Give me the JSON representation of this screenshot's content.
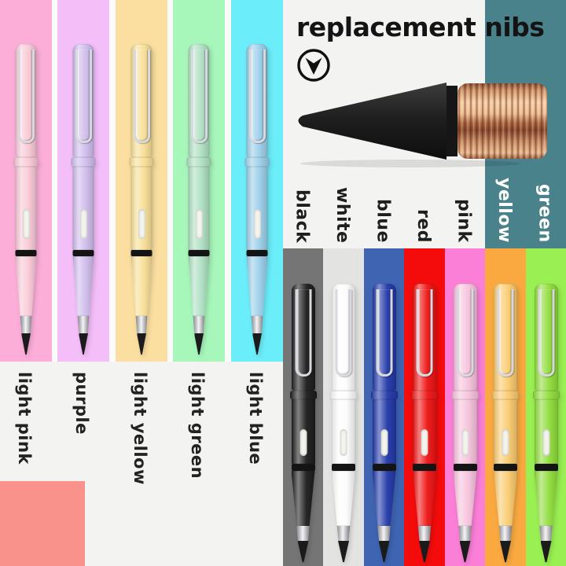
{
  "title": "replacement nibs",
  "page": {
    "bg": "#F3F3F1",
    "gap_bg": "#FBFBF9",
    "teal": "#4A828C",
    "salmon": "#F9928B",
    "label_dark": "#222222",
    "label_light": "#FFFFFF"
  },
  "nib": {
    "cone_color": "#222222",
    "band_color": "#161616",
    "copper_highlight": "#F7CFA8",
    "copper_shadow": "#8A4A30"
  },
  "left_panel": {
    "pens": [
      {
        "label": "light pink",
        "column": "#FCAED9",
        "pen": "#F9C9D6"
      },
      {
        "label": "purple",
        "column": "#F4BEF9",
        "pen": "#CFBCEC"
      },
      {
        "label": "light yellow",
        "column": "#FBDFA0",
        "pen": "#F8DF97"
      },
      {
        "label": "light green",
        "column": "#A7F7BB",
        "pen": "#AEE0C2"
      },
      {
        "label": "light blue",
        "column": "#6CEEFA",
        "pen": "#9BCFE9"
      }
    ]
  },
  "right_panel": {
    "pens": [
      {
        "label": "black",
        "label_color": "#1E1E1E",
        "column": "#757575",
        "pen": "#1E1E1E"
      },
      {
        "label": "white",
        "label_color": "#1E1E1E",
        "column": "#E3E3E1",
        "pen": "#FCFCFC"
      },
      {
        "label": "blue",
        "label_color": "#1E1E1E",
        "column": "#3E64B2",
        "pen": "#2339A8"
      },
      {
        "label": "red",
        "label_color": "#1E1E1E",
        "column": "#F40C0C",
        "pen": "#EE1515"
      },
      {
        "label": "pink",
        "label_color": "#1E1E1E",
        "column": "#FB7FD7",
        "pen": "#F7C3DD"
      },
      {
        "label": "yellow",
        "label_color": "#FFFFFF",
        "column": "#F9A940",
        "pen": "#FACB70"
      },
      {
        "label": "green",
        "label_color": "#FFFFFF",
        "column": "#9AF052",
        "pen": "#90DC3C"
      }
    ]
  }
}
